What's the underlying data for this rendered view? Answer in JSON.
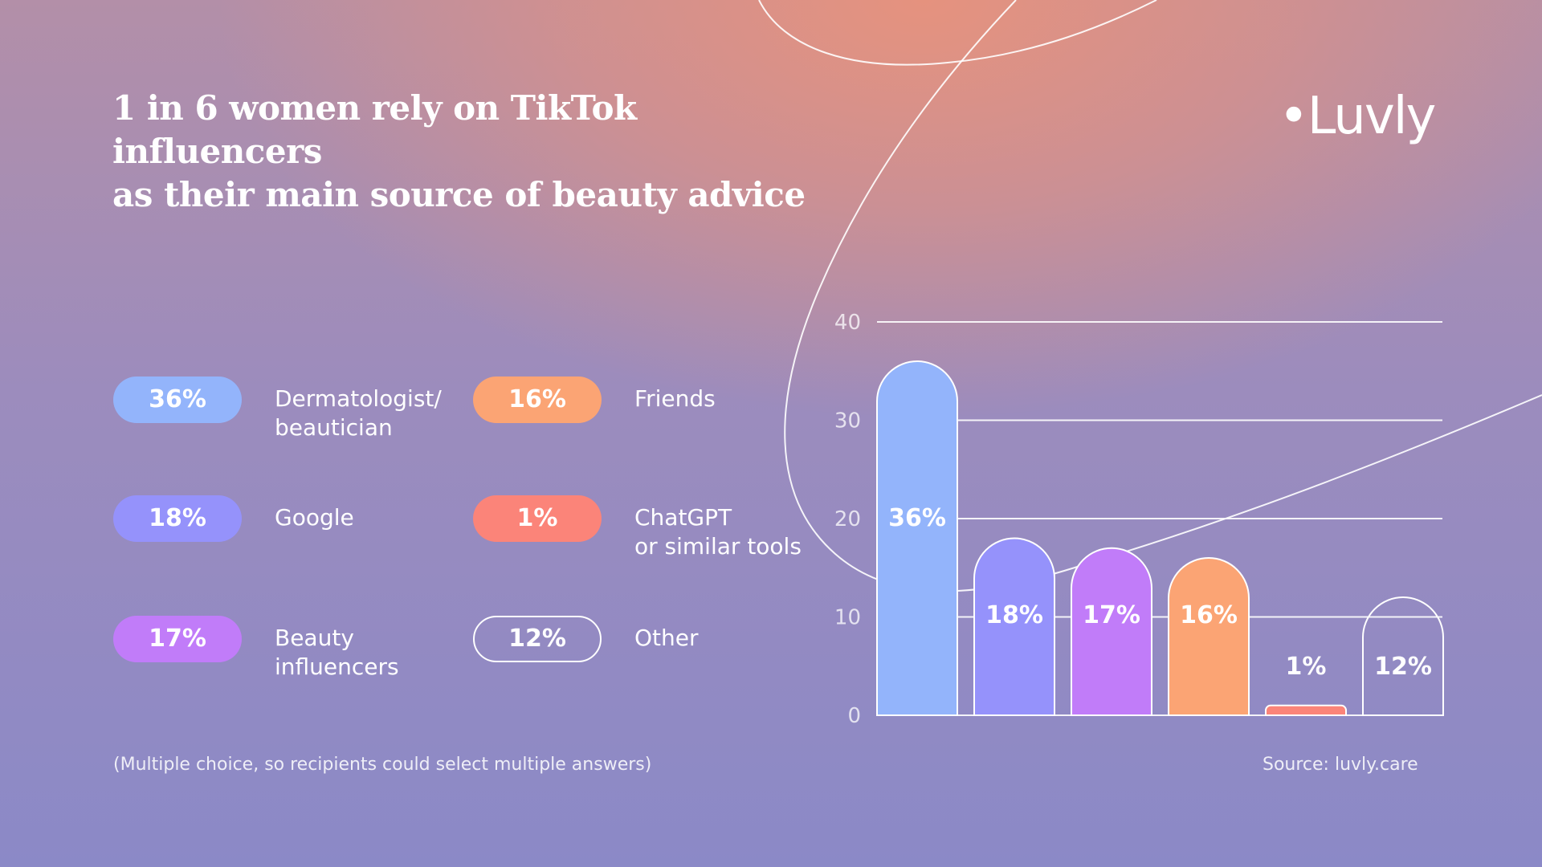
{
  "title": {
    "line1": "1 in 6 women rely on TikTok influencers",
    "line2": "as their main source of beauty advice"
  },
  "logo": "•Luvly",
  "legend": [
    {
      "value": "36%",
      "label_line1": "Dermatologist/",
      "label_line2": "beautician",
      "color": "#93b4fb",
      "outline": false
    },
    {
      "value": "18%",
      "label_line1": "Google",
      "label_line2": "",
      "color": "#9592fb",
      "outline": false
    },
    {
      "value": "17%",
      "label_line1": "Beauty",
      "label_line2": "influencers",
      "color": "#c17cf9",
      "outline": false
    },
    {
      "value": "16%",
      "label_line1": "Friends",
      "label_line2": "",
      "color": "#fba474",
      "outline": false
    },
    {
      "value": "1%",
      "label_line1": "ChatGPT",
      "label_line2": "or similar tools",
      "color": "#fb8479",
      "outline": false
    },
    {
      "value": "12%",
      "label_line1": "Other",
      "label_line2": "",
      "color": "",
      "outline": true
    }
  ],
  "footnote": "(Multiple choice, so recipients could select multiple answers)",
  "source": "Source: luvly.care",
  "chart_data": {
    "type": "bar",
    "categories": [
      "Dermatologist/beautician",
      "Google",
      "Beauty influencers",
      "Friends",
      "ChatGPT or similar tools",
      "Other"
    ],
    "values": [
      36,
      18,
      17,
      16,
      1,
      12
    ],
    "data_labels": [
      "36%",
      "18%",
      "17%",
      "16%",
      "1%",
      "12%"
    ],
    "colors": [
      "#93b4fb",
      "#9592fb",
      "#c17cf9",
      "#fba474",
      "#fb8479",
      "none"
    ],
    "yticks": [
      0,
      10,
      20,
      30,
      40
    ],
    "ylim": [
      0,
      40
    ],
    "grid": true,
    "title": "",
    "xlabel": "",
    "ylabel": ""
  }
}
